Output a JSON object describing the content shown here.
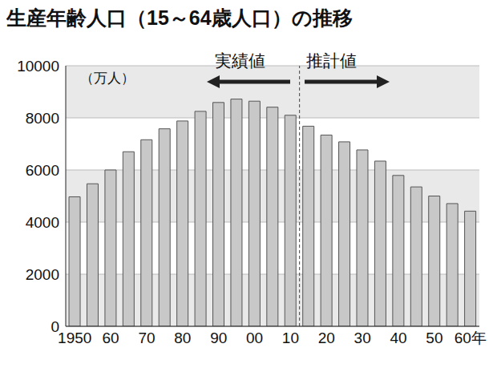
{
  "chart_data": {
    "type": "bar",
    "title": "生産年齢人口（15～64歳人口）の推移",
    "ylabel": "（万人）",
    "annotations": [
      "実績値",
      "推計値"
    ],
    "categories": [
      "1950",
      null,
      "60",
      null,
      "70",
      null,
      "80",
      null,
      "90",
      null,
      "00",
      null,
      "10",
      null,
      "20",
      null,
      "30",
      null,
      "40",
      null,
      "50",
      null,
      "60年"
    ],
    "values": [
      4970,
      5470,
      6000,
      6700,
      7160,
      7580,
      7880,
      8250,
      8590,
      8720,
      8640,
      8410,
      8100,
      7680,
      7340,
      7080,
      6770,
      6340,
      5790,
      5350,
      5000,
      4710,
      4420
    ],
    "color": "#c8c8c8",
    "ylim": [
      0,
      10000
    ],
    "yticks": [
      0,
      2000,
      4000,
      6000,
      8000,
      10000
    ],
    "grid": true
  }
}
